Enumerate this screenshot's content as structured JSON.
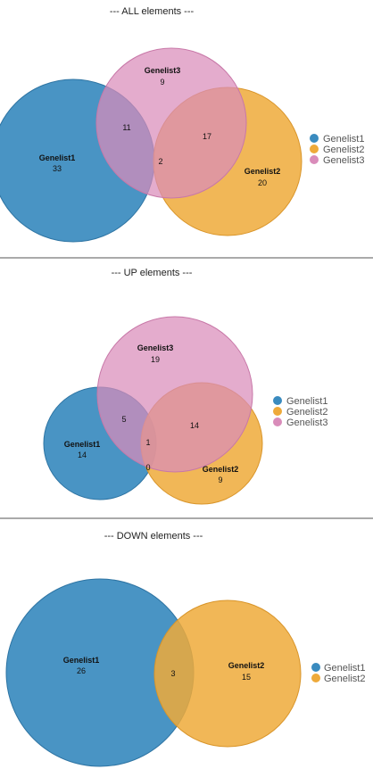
{
  "colors": {
    "Genelist1": "#3a8bbf",
    "Genelist2": "#eeaa3a",
    "Genelist3": "#d98cba"
  },
  "diagrams": [
    {
      "title": "--- ALL elements ---",
      "sets": [
        {
          "name": "Genelist1",
          "count": "33"
        },
        {
          "name": "Genelist2",
          "count": "20"
        },
        {
          "name": "Genelist3",
          "count": "9"
        }
      ],
      "intersections": [
        {
          "sets": [
            "Genelist1",
            "Genelist3"
          ],
          "count": "11"
        },
        {
          "sets": [
            "Genelist2",
            "Genelist3"
          ],
          "count": "17"
        },
        {
          "sets": [
            "Genelist1",
            "Genelist2",
            "Genelist3"
          ],
          "count": "2"
        }
      ],
      "legend": [
        "Genelist1",
        "Genelist2",
        "Genelist3"
      ]
    },
    {
      "title": "--- UP elements ---",
      "sets": [
        {
          "name": "Genelist1",
          "count": "14"
        },
        {
          "name": "Genelist2",
          "count": "9"
        },
        {
          "name": "Genelist3",
          "count": "19"
        }
      ],
      "intersections": [
        {
          "sets": [
            "Genelist1",
            "Genelist3"
          ],
          "count": "5"
        },
        {
          "sets": [
            "Genelist2",
            "Genelist3"
          ],
          "count": "14"
        },
        {
          "sets": [
            "Genelist1",
            "Genelist2",
            "Genelist3"
          ],
          "count": "1"
        },
        {
          "sets": [
            "Genelist1",
            "Genelist2"
          ],
          "count": "0"
        }
      ],
      "legend": [
        "Genelist1",
        "Genelist2",
        "Genelist3"
      ]
    },
    {
      "title": "--- DOWN elements ---",
      "sets": [
        {
          "name": "Genelist1",
          "count": "26"
        },
        {
          "name": "Genelist2",
          "count": "15"
        }
      ],
      "intersections": [
        {
          "sets": [
            "Genelist1",
            "Genelist2"
          ],
          "count": "3"
        }
      ],
      "legend": [
        "Genelist1",
        "Genelist2"
      ]
    }
  ]
}
